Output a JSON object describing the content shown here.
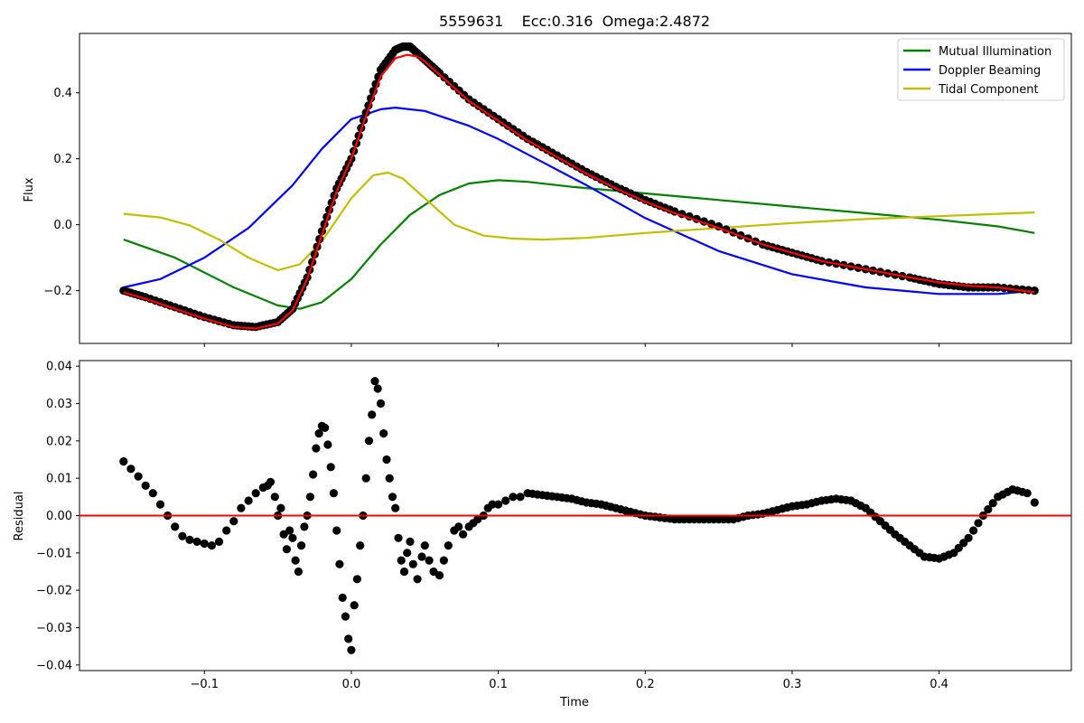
{
  "title": "5559631    Ecc:0.316  Omega:2.4872",
  "chart_data": [
    {
      "type": "line",
      "panel": "top",
      "title": "5559631    Ecc:0.316  Omega:2.4872",
      "xlabel": "",
      "ylabel": "Flux",
      "xlim": [
        -0.185,
        0.49
      ],
      "ylim": [
        -0.36,
        0.58
      ],
      "xticks": [
        -0.1,
        0.0,
        0.1,
        0.2,
        0.3,
        0.4
      ],
      "xticklabels": [
        "",
        "",
        "",
        "",
        "",
        ""
      ],
      "yticks": [
        -0.2,
        0.0,
        0.2,
        0.4
      ],
      "yticklabels": [
        "−0.2",
        "0.0",
        "0.2",
        "0.4"
      ],
      "grid": false,
      "legend_position": "top-right",
      "observed_points": {
        "name": "",
        "color": "#000000",
        "x": [
          -0.155,
          -0.14,
          -0.12,
          -0.1,
          -0.08,
          -0.065,
          -0.05,
          -0.04,
          -0.03,
          -0.02,
          -0.01,
          0.0,
          0.01,
          0.02,
          0.03,
          0.035,
          0.04,
          0.05,
          0.06,
          0.08,
          0.1,
          0.12,
          0.14,
          0.16,
          0.18,
          0.2,
          0.22,
          0.25,
          0.28,
          0.3,
          0.32,
          0.35,
          0.38,
          0.4,
          0.42,
          0.44,
          0.465
        ],
        "y": [
          -0.2,
          -0.22,
          -0.25,
          -0.28,
          -0.305,
          -0.31,
          -0.295,
          -0.255,
          -0.16,
          -0.02,
          0.11,
          0.2,
          0.34,
          0.47,
          0.53,
          0.54,
          0.54,
          0.5,
          0.46,
          0.38,
          0.32,
          0.26,
          0.21,
          0.16,
          0.115,
          0.075,
          0.04,
          -0.005,
          -0.06,
          -0.085,
          -0.11,
          -0.135,
          -0.16,
          -0.18,
          -0.19,
          -0.19,
          -0.2
        ]
      },
      "series": [
        {
          "name": "",
          "color": "#ff0000",
          "x": [
            -0.155,
            -0.14,
            -0.12,
            -0.1,
            -0.08,
            -0.065,
            -0.05,
            -0.04,
            -0.03,
            -0.02,
            -0.01,
            0.0,
            0.01,
            0.02,
            0.03,
            0.038,
            0.045,
            0.05,
            0.06,
            0.08,
            0.1,
            0.12,
            0.14,
            0.16,
            0.18,
            0.2,
            0.22,
            0.25,
            0.28,
            0.3,
            0.32,
            0.35,
            0.38,
            0.4,
            0.42,
            0.44,
            0.465
          ],
          "y": [
            -0.205,
            -0.225,
            -0.255,
            -0.285,
            -0.31,
            -0.315,
            -0.3,
            -0.26,
            -0.165,
            -0.03,
            0.1,
            0.2,
            0.33,
            0.45,
            0.505,
            0.515,
            0.51,
            0.495,
            0.455,
            0.375,
            0.315,
            0.255,
            0.205,
            0.155,
            0.11,
            0.07,
            0.035,
            -0.01,
            -0.06,
            -0.085,
            -0.11,
            -0.135,
            -0.16,
            -0.175,
            -0.185,
            -0.19,
            -0.205
          ]
        },
        {
          "name": "Mutual Illumination",
          "color": "#008000",
          "x": [
            -0.155,
            -0.12,
            -0.08,
            -0.05,
            -0.035,
            -0.02,
            0.0,
            0.02,
            0.04,
            0.06,
            0.08,
            0.1,
            0.12,
            0.15,
            0.2,
            0.25,
            0.3,
            0.35,
            0.4,
            0.44,
            0.465
          ],
          "y": [
            -0.045,
            -0.1,
            -0.19,
            -0.245,
            -0.255,
            -0.235,
            -0.165,
            -0.06,
            0.03,
            0.09,
            0.125,
            0.135,
            0.13,
            0.115,
            0.095,
            0.075,
            0.055,
            0.035,
            0.015,
            -0.005,
            -0.025
          ]
        },
        {
          "name": "Doppler Beaming",
          "color": "#0000ff",
          "x": [
            -0.155,
            -0.13,
            -0.1,
            -0.07,
            -0.04,
            -0.02,
            0.0,
            0.02,
            0.03,
            0.05,
            0.08,
            0.1,
            0.13,
            0.16,
            0.2,
            0.25,
            0.3,
            0.35,
            0.4,
            0.44,
            0.465
          ],
          "y": [
            -0.19,
            -0.165,
            -0.1,
            -0.01,
            0.12,
            0.23,
            0.32,
            0.35,
            0.355,
            0.345,
            0.3,
            0.26,
            0.19,
            0.12,
            0.02,
            -0.08,
            -0.15,
            -0.19,
            -0.21,
            -0.21,
            -0.2
          ]
        },
        {
          "name": "Tidal Component",
          "color": "#bfbf00",
          "x": [
            -0.155,
            -0.13,
            -0.11,
            -0.09,
            -0.07,
            -0.05,
            -0.035,
            -0.02,
            0.0,
            0.015,
            0.025,
            0.035,
            0.05,
            0.07,
            0.09,
            0.11,
            0.13,
            0.16,
            0.2,
            0.25,
            0.3,
            0.35,
            0.4,
            0.44,
            0.465
          ],
          "y": [
            0.033,
            0.022,
            -0.002,
            -0.045,
            -0.1,
            -0.138,
            -0.12,
            -0.05,
            0.08,
            0.15,
            0.158,
            0.14,
            0.08,
            0.0,
            -0.033,
            -0.042,
            -0.045,
            -0.04,
            -0.025,
            -0.01,
            0.005,
            0.017,
            0.026,
            0.033,
            0.037
          ]
        }
      ]
    },
    {
      "type": "scatter",
      "panel": "bottom",
      "title": "",
      "xlabel": "Time",
      "ylabel": "Residual",
      "xlim": [
        -0.185,
        0.49
      ],
      "ylim": [
        -0.0415,
        0.0415
      ],
      "xticks": [
        -0.1,
        0.0,
        0.1,
        0.2,
        0.3,
        0.4
      ],
      "xticklabels": [
        "−0.1",
        "0.0",
        "0.1",
        "0.2",
        "0.3",
        "0.4"
      ],
      "yticks": [
        -0.04,
        -0.03,
        -0.02,
        -0.01,
        0.0,
        0.01,
        0.02,
        0.03,
        0.04
      ],
      "yticklabels": [
        "−0.04",
        "−0.03",
        "−0.02",
        "−0.01",
        "0.00",
        "0.01",
        "0.02",
        "0.03",
        "0.04"
      ],
      "grid": false,
      "reference_line": {
        "y": 0.0,
        "color": "#ff0000"
      },
      "points": {
        "color": "#000000",
        "x": [
          -0.155,
          -0.15,
          -0.145,
          -0.14,
          -0.135,
          -0.13,
          -0.125,
          -0.12,
          -0.115,
          -0.11,
          -0.105,
          -0.1,
          -0.095,
          -0.09,
          -0.085,
          -0.08,
          -0.075,
          -0.07,
          -0.065,
          -0.06,
          -0.057,
          -0.055,
          -0.052,
          -0.05,
          -0.048,
          -0.046,
          -0.044,
          -0.042,
          -0.04,
          -0.038,
          -0.036,
          -0.034,
          -0.032,
          -0.03,
          -0.028,
          -0.026,
          -0.024,
          -0.022,
          -0.02,
          -0.018,
          -0.016,
          -0.014,
          -0.012,
          -0.01,
          -0.008,
          -0.006,
          -0.004,
          -0.002,
          0.0,
          0.002,
          0.004,
          0.006,
          0.008,
          0.01,
          0.012,
          0.014,
          0.016,
          0.018,
          0.02,
          0.022,
          0.024,
          0.026,
          0.028,
          0.03,
          0.032,
          0.034,
          0.036,
          0.038,
          0.04,
          0.042,
          0.045,
          0.048,
          0.05,
          0.053,
          0.056,
          0.06,
          0.063,
          0.066,
          0.07,
          0.073,
          0.076,
          0.08,
          0.083,
          0.086,
          0.09,
          0.093,
          0.096,
          0.1,
          0.105,
          0.11,
          0.115,
          0.12,
          0.13,
          0.14,
          0.15,
          0.16,
          0.17,
          0.18,
          0.19,
          0.2,
          0.21,
          0.22,
          0.23,
          0.24,
          0.25,
          0.26,
          0.27,
          0.28,
          0.29,
          0.3,
          0.31,
          0.32,
          0.33,
          0.34,
          0.35,
          0.36,
          0.37,
          0.38,
          0.39,
          0.4,
          0.41,
          0.42,
          0.43,
          0.44,
          0.45,
          0.46,
          0.465
        ],
        "y": [
          0.0145,
          0.0125,
          0.0105,
          0.008,
          0.006,
          0.003,
          0.0,
          -0.003,
          -0.0055,
          -0.0065,
          -0.007,
          -0.0075,
          -0.008,
          -0.007,
          -0.004,
          -0.0015,
          0.002,
          0.004,
          0.006,
          0.0075,
          0.008,
          0.009,
          0.005,
          0.0,
          0.002,
          -0.005,
          -0.009,
          -0.004,
          -0.006,
          -0.012,
          -0.015,
          -0.008,
          -0.003,
          0.0,
          0.005,
          0.011,
          0.018,
          0.022,
          0.024,
          0.0235,
          0.019,
          0.013,
          0.006,
          -0.004,
          -0.013,
          -0.022,
          -0.027,
          -0.033,
          -0.036,
          -0.024,
          -0.017,
          -0.008,
          0.0,
          0.01,
          0.02,
          0.027,
          0.036,
          0.034,
          0.03,
          0.022,
          0.015,
          0.01,
          0.005,
          0.002,
          -0.006,
          -0.012,
          -0.015,
          -0.01,
          -0.007,
          -0.013,
          -0.017,
          -0.011,
          -0.008,
          -0.012,
          -0.015,
          -0.016,
          -0.012,
          -0.008,
          -0.004,
          -0.003,
          -0.005,
          -0.003,
          -0.002,
          -0.001,
          0.0,
          0.002,
          0.003,
          0.003,
          0.004,
          0.005,
          0.005,
          0.006,
          0.0055,
          0.005,
          0.0045,
          0.0035,
          0.003,
          0.002,
          0.001,
          0.0,
          -0.0005,
          -0.001,
          -0.001,
          -0.001,
          -0.001,
          -0.001,
          0.0,
          0.0005,
          0.0015,
          0.0025,
          0.003,
          0.004,
          0.0045,
          0.004,
          0.002,
          -0.0015,
          -0.005,
          -0.008,
          -0.011,
          -0.0115,
          -0.01,
          -0.006,
          0.0,
          0.005,
          0.007,
          0.006,
          0.0035
        ]
      }
    }
  ]
}
